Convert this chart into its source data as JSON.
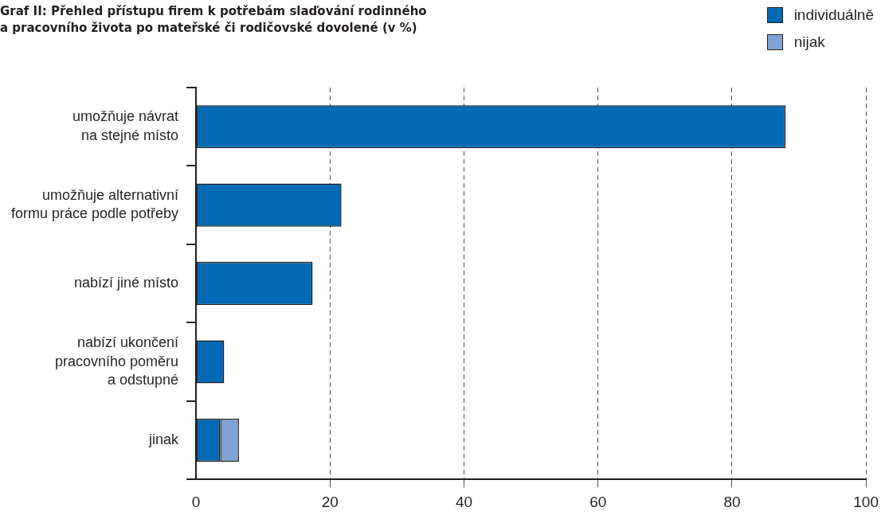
{
  "chart_data": {
    "type": "bar",
    "orientation": "horizontal",
    "stacked": true,
    "title": "Graf II: Přehled přístupu firem k potřebám slaďování rodinného\na pracovního života po mateřské či rodičovské dovolené (v %)",
    "categories": [
      "umožňuje návrat\nna stejné místo",
      "umožňuje alternativní\nformu práce podle potřeby",
      "nabízí jiné místo",
      "nabízí ukončení\npracovního poměru\na odstupné",
      "jinak"
    ],
    "series": [
      {
        "name": "individuálně",
        "color": "#006ab4",
        "values": [
          88,
          21.7,
          17.4,
          4.2,
          3.6
        ]
      },
      {
        "name": "nijak",
        "color": "#7fa3d4",
        "values": [
          null,
          null,
          null,
          null,
          2.8
        ]
      }
    ],
    "xlim": [
      0,
      100
    ],
    "xticks": [
      0,
      20,
      40,
      60,
      80,
      100
    ],
    "grid": "x",
    "legend": "top right"
  }
}
